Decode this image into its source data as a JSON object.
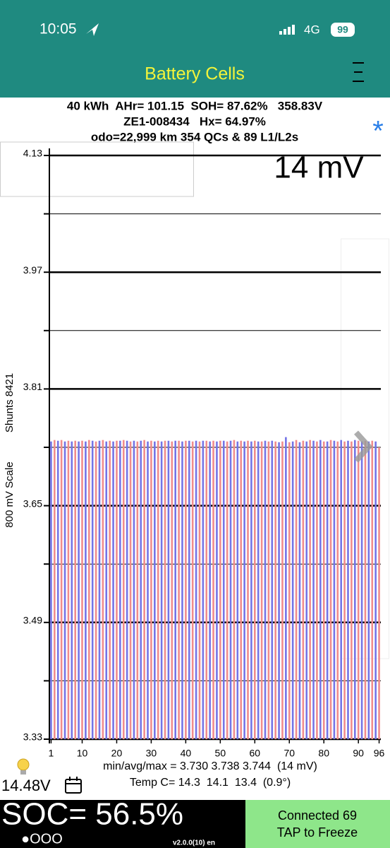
{
  "status_bar": {
    "time": "10:05",
    "network": "4G",
    "battery": "99"
  },
  "header": {
    "title": "Battery Cells"
  },
  "info": {
    "lines": [
      "40 kWh  AHr= 101.15  SOH= 87.62%   358.83V",
      "ZE1-008434   Hx= 64.97%",
      "odo=22,999 km 354 QCs & 89 L1/L2s"
    ]
  },
  "chart_data": {
    "type": "bar",
    "annotation": "14 mV",
    "ylabel": "800 mV Scale",
    "ylabel2": "Shunts 8421",
    "x": [
      1,
      2,
      3,
      4,
      5,
      6,
      7,
      8,
      9,
      10,
      11,
      12,
      13,
      14,
      15,
      16,
      17,
      18,
      19,
      20,
      21,
      22,
      23,
      24,
      25,
      26,
      27,
      28,
      29,
      30,
      31,
      32,
      33,
      34,
      35,
      36,
      37,
      38,
      39,
      40,
      41,
      42,
      43,
      44,
      45,
      46,
      47,
      48,
      49,
      50,
      51,
      52,
      53,
      54,
      55,
      56,
      57,
      58,
      59,
      60,
      61,
      62,
      63,
      64,
      65,
      66,
      67,
      68,
      69,
      70,
      71,
      72,
      73,
      74,
      75,
      76,
      77,
      78,
      79,
      80,
      81,
      82,
      83,
      84,
      85,
      86,
      87,
      88,
      89,
      90,
      91,
      92,
      93,
      94,
      95,
      96
    ],
    "values": [
      3.738,
      3.74,
      3.739,
      3.74,
      3.738,
      3.739,
      3.738,
      3.739,
      3.738,
      3.739,
      3.738,
      3.74,
      3.739,
      3.738,
      3.739,
      3.74,
      3.738,
      3.739,
      3.738,
      3.739,
      3.739,
      3.74,
      3.739,
      3.738,
      3.739,
      3.738,
      3.739,
      3.74,
      3.738,
      3.739,
      3.738,
      3.739,
      3.738,
      3.739,
      3.739,
      3.738,
      3.739,
      3.739,
      3.738,
      3.739,
      3.739,
      3.738,
      3.739,
      3.738,
      3.739,
      3.739,
      3.738,
      3.739,
      3.738,
      3.739,
      3.739,
      3.738,
      3.739,
      3.74,
      3.738,
      3.739,
      3.738,
      3.739,
      3.738,
      3.739,
      3.738,
      3.738,
      3.739,
      3.738,
      3.739,
      3.738,
      3.737,
      3.738,
      3.744,
      3.737,
      3.738,
      3.74,
      3.737,
      3.739,
      3.738,
      3.74,
      3.739,
      3.738,
      3.74,
      3.738,
      3.738,
      3.74,
      3.739,
      3.738,
      3.74,
      3.738,
      3.739,
      3.738,
      3.74,
      3.739,
      3.738,
      3.739,
      3.738,
      3.739,
      3.738,
      3.73
    ],
    "colors": [
      "#7474e6",
      "#f08c8c"
    ],
    "xlim": [
      0.5,
      96.5
    ],
    "xticks": [
      1,
      10,
      20,
      30,
      40,
      50,
      60,
      70,
      80,
      90,
      96
    ],
    "ylim": [
      3.33,
      4.13
    ],
    "yticks": [
      3.33,
      3.49,
      3.65,
      3.81,
      3.97,
      4.13
    ],
    "yminorticks": [
      3.41,
      3.57,
      3.73,
      3.89,
      4.05
    ],
    "grid": true
  },
  "footer": {
    "stats": [
      "min/avg/max = 3.730 3.738 3.744  (14 mV)",
      "Temp C= 14.3  14.1  13.4  (0.9°)"
    ],
    "voltage": "14.48V",
    "soc": "SOC= 56.5%",
    "dots": "●OOO",
    "version": "v2.0.0(10) en",
    "button": [
      "Connected 69",
      "TAP to Freeze"
    ]
  }
}
